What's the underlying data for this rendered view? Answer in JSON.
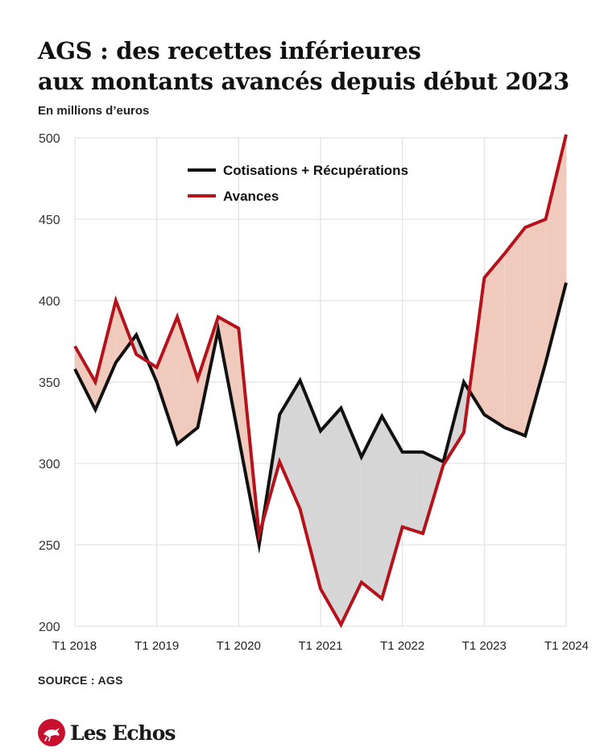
{
  "header": {
    "title_line1": "AGS : des recettes inférieures",
    "title_line2": "aux montants avancés depuis début 2023",
    "subtitle": "En millions d’euros"
  },
  "footer": {
    "source": "SOURCE : AGS",
    "brand": "Les Echos"
  },
  "colors": {
    "cotisations": "#111111",
    "avances": "#b5121b",
    "fill_avances_higher": "#f0cbbd",
    "fill_cotisations_higher": "#d6d6d6",
    "grid": "#dcdcdc",
    "brand_red": "#c8102e"
  },
  "chart_data": {
    "type": "line",
    "x_tick_labels": [
      "T1 2018",
      "T1 2019",
      "T1 2020",
      "T1 2021",
      "T1 2022",
      "T1 2023",
      "T1 2024"
    ],
    "x": [
      "T1 2018",
      "T2 2018",
      "T3 2018",
      "T4 2018",
      "T1 2019",
      "T2 2019",
      "T3 2019",
      "T4 2019",
      "T1 2020",
      "T2 2020",
      "T3 2020",
      "T4 2020",
      "T1 2021",
      "T2 2021",
      "T3 2021",
      "T4 2021",
      "T1 2022",
      "T2 2022",
      "T3 2022",
      "T4 2022",
      "T1 2023",
      "T2 2023",
      "T3 2023",
      "T4 2023",
      "T1 2024"
    ],
    "series": [
      {
        "name": "Cotisations + Récupérations",
        "color": "#111111",
        "values": [
          358,
          333,
          362,
          379,
          350,
          312,
          322,
          382,
          316,
          250,
          330,
          351,
          320,
          334,
          304,
          329,
          307,
          307,
          301,
          350,
          330,
          322,
          317,
          362,
          411
        ]
      },
      {
        "name": "Avances",
        "color": "#b5121b",
        "values": [
          372,
          350,
          400,
          367,
          359,
          390,
          352,
          390,
          383,
          256,
          301,
          272,
          223,
          201,
          227,
          217,
          261,
          257,
          299,
          319,
          414,
          429,
          445,
          450,
          502
        ]
      }
    ],
    "y_ticks": [
      200,
      250,
      300,
      350,
      400,
      450,
      500
    ],
    "ylim": [
      200,
      500
    ],
    "ylabel": "En millions d’euros",
    "grid": true,
    "legend_position": "top-center"
  }
}
